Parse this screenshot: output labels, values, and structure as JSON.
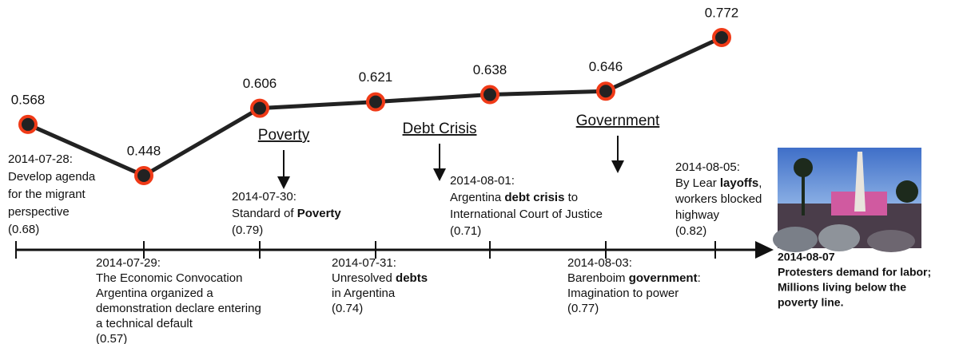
{
  "points": [
    {
      "label": "0.568",
      "value": 0.568
    },
    {
      "label": "0.448",
      "value": 0.448
    },
    {
      "label": "0.606",
      "value": 0.606
    },
    {
      "label": "0.621",
      "value": 0.621
    },
    {
      "label": "0.638",
      "value": 0.638
    },
    {
      "label": "0.646",
      "value": 0.646
    },
    {
      "label": "0.772",
      "value": 0.772
    }
  ],
  "topics": [
    "Poverty",
    "Debt Crisis",
    "Government"
  ],
  "events": [
    {
      "date": "2014-07-28:",
      "lines": [
        "Develop agenda",
        "for the migrant",
        "perspective",
        "(0.68)"
      ]
    },
    {
      "date": "2014-07-29:",
      "lines": [
        "The Economic Convocation",
        "Argentina organized a",
        "demonstration declare entering",
        "a technical default",
        "(0.57)"
      ]
    },
    {
      "date": "2014-07-30:",
      "lines": [
        [
          "Standard of ",
          "Poverty"
        ],
        "(0.79)"
      ]
    },
    {
      "date": "2014-07-31:",
      "lines": [
        [
          "Unresolved ",
          "debts"
        ],
        "in Argentina",
        "(0.74)"
      ]
    },
    {
      "date": "2014-08-01:",
      "lines": [
        [
          "Argentina ",
          "debt crisis",
          " to"
        ],
        "International Court of Justice",
        "(0.71)"
      ]
    },
    {
      "date": "2014-08-03:",
      "lines": [
        [
          "Barenboim ",
          "government",
          ":"
        ],
        "Imagination to power",
        "(0.77)"
      ]
    },
    {
      "date": "2014-08-05:",
      "lines": [
        [
          "By Lear ",
          "layoffs",
          ","
        ],
        "workers blocked",
        "highway",
        "(0.82)"
      ]
    }
  ],
  "caption": [
    "2014-08-07",
    "Protesters demand for labor;",
    "Millions living below the",
    "poverty line."
  ]
}
